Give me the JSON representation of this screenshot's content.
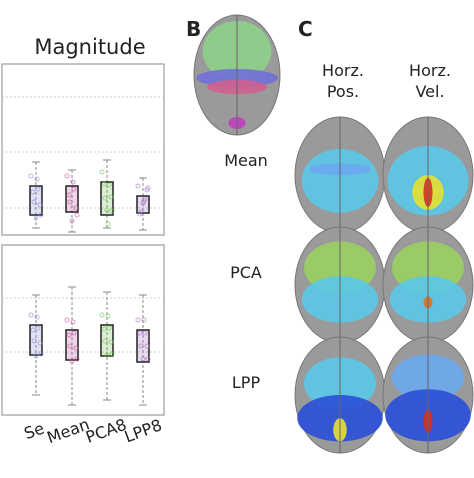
{
  "panel_a": {
    "title": "Magnitude",
    "x_labels": [
      "Se",
      "Mean",
      "PCA8",
      "LPP8"
    ]
  },
  "panel_b": {
    "label": "B"
  },
  "panel_c": {
    "label": "C",
    "columns": [
      [
        "Horz.",
        "Pos."
      ],
      [
        "Horz.",
        "Vel."
      ]
    ],
    "rows": [
      "Mean",
      "PCA",
      "LPP"
    ]
  }
}
